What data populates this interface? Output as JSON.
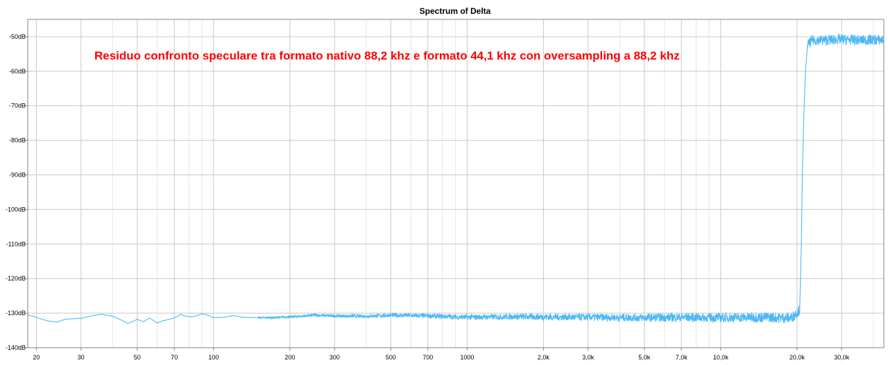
{
  "chart_data": {
    "type": "line",
    "title": "Spectrum of Delta",
    "annotation": "Residuo confronto speculare tra formato nativo 88,2 khz e formato 44,1 khz con oversampling a 88,2 khz",
    "xlabel": "",
    "ylabel": "",
    "x_scale": "log",
    "xlim": [
      18.5,
      44000
    ],
    "ylim": [
      -140,
      -45
    ],
    "grid": true,
    "legend": "none",
    "colors": {
      "line": "#4db8f5",
      "grid_major": "#c8c8c8",
      "grid_minor": "#e6e6e6",
      "axis": "#808080",
      "annotation": "#ff0000"
    },
    "x_ticks": [
      {
        "value": 20,
        "label": "20"
      },
      {
        "value": 30,
        "label": "30"
      },
      {
        "value": 50,
        "label": "50"
      },
      {
        "value": 70,
        "label": "70"
      },
      {
        "value": 100,
        "label": "100"
      },
      {
        "value": 200,
        "label": "200"
      },
      {
        "value": 300,
        "label": "300"
      },
      {
        "value": 500,
        "label": "500"
      },
      {
        "value": 700,
        "label": "700"
      },
      {
        "value": 1000,
        "label": "1000"
      },
      {
        "value": 2000,
        "label": "2,0k"
      },
      {
        "value": 3000,
        "label": "3,0k"
      },
      {
        "value": 5000,
        "label": "5,0k"
      },
      {
        "value": 7000,
        "label": "7,0k"
      },
      {
        "value": 10000,
        "label": "10,0k"
      },
      {
        "value": 20000,
        "label": "20,0k"
      },
      {
        "value": 30000,
        "label": "30,0k"
      }
    ],
    "x_minor_ticks": [
      40,
      60,
      80,
      90,
      400,
      600,
      800,
      900,
      4000,
      6000,
      8000,
      9000,
      40000
    ],
    "y_ticks": [
      {
        "value": -50,
        "label": "-50dB"
      },
      {
        "value": -60,
        "label": "-60dB"
      },
      {
        "value": -70,
        "label": "-70dB"
      },
      {
        "value": -80,
        "label": "-80dB"
      },
      {
        "value": -90,
        "label": "-90dB"
      },
      {
        "value": -100,
        "label": "-100dB"
      },
      {
        "value": -110,
        "label": "-110dB"
      },
      {
        "value": -120,
        "label": "-120dB"
      },
      {
        "value": -130,
        "label": "-130dB"
      },
      {
        "value": -140,
        "label": "-140dB"
      }
    ],
    "series": [
      {
        "x": [
          18.5,
          20,
          22,
          24,
          26,
          28,
          30,
          33,
          36,
          40,
          43,
          46,
          50,
          53,
          56,
          60,
          63,
          66,
          70,
          74,
          78,
          82,
          86,
          90,
          95,
          100,
          110,
          120,
          130,
          150,
          170,
          200,
          250,
          300,
          400,
          500,
          700,
          1000,
          1500,
          2000,
          3000,
          5000,
          7000,
          10000,
          15000,
          19000,
          20500,
          20800,
          21000,
          21300,
          21600,
          22000,
          23000,
          26000,
          30000,
          35000,
          40000,
          44000
        ],
        "y": [
          -130.5,
          -131.2,
          -132.2,
          -132.6,
          -131.8,
          -131.6,
          -131.5,
          -130.8,
          -130.3,
          -130.9,
          -131.9,
          -133.0,
          -131.8,
          -132.5,
          -131.4,
          -132.9,
          -132.2,
          -131.9,
          -131.4,
          -130.4,
          -130.9,
          -131.1,
          -130.7,
          -130.2,
          -130.6,
          -131.3,
          -131.2,
          -130.7,
          -131.2,
          -131.3,
          -131.3,
          -131.1,
          -130.6,
          -130.8,
          -130.9,
          -130.6,
          -130.8,
          -131.2,
          -131.0,
          -131.1,
          -131.2,
          -131.3,
          -131.2,
          -131.3,
          -131.2,
          -131.4,
          -129.0,
          -110.0,
          -90.0,
          -72.0,
          -60.0,
          -52.5,
          -51.0,
          -51.0,
          -50.8,
          -51.0,
          -50.9,
          -51.0
        ]
      }
    ]
  }
}
